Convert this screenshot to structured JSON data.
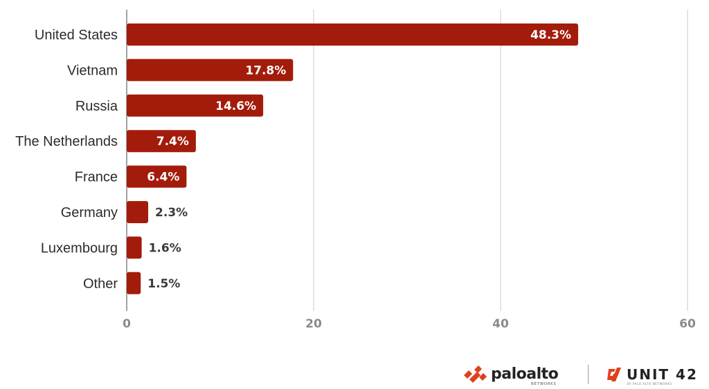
{
  "chart_data": {
    "type": "bar",
    "orientation": "horizontal",
    "categories": [
      "United States",
      "Vietnam",
      "Russia",
      "The Netherlands",
      "France",
      "Germany",
      "Luxembourg",
      "Other"
    ],
    "values": [
      48.3,
      17.8,
      14.6,
      7.4,
      6.4,
      2.3,
      1.6,
      1.5
    ],
    "value_labels": [
      "48.3%",
      "17.8%",
      "14.6%",
      "7.4%",
      "6.4%",
      "2.3%",
      "1.6%",
      "1.5%"
    ],
    "xlim": [
      0,
      60
    ],
    "x_ticks": [
      0,
      20,
      40,
      60
    ],
    "x_tick_labels": [
      "0",
      "20",
      "40",
      "60"
    ],
    "title": "",
    "xlabel": "",
    "ylabel": "",
    "grid": "vertical",
    "legend": "none",
    "colors": {
      "bar": "#a31c0b",
      "label_inside": "#ffffff",
      "label_outside": "#3a3a3a",
      "gridline": "#d3d3d3",
      "axis": "#8a8a8a"
    }
  },
  "branding": {
    "paloalto_name": "paloalto",
    "paloalto_sub": "NETWORKS",
    "unit42_name": "UNIT 42",
    "unit42_sub": "BY PALO ALTO NETWORKS",
    "accent": "#e0401c",
    "paloalto_icon": "paloalto-logo-icon",
    "unit42_icon": "unit42-logo-icon"
  }
}
